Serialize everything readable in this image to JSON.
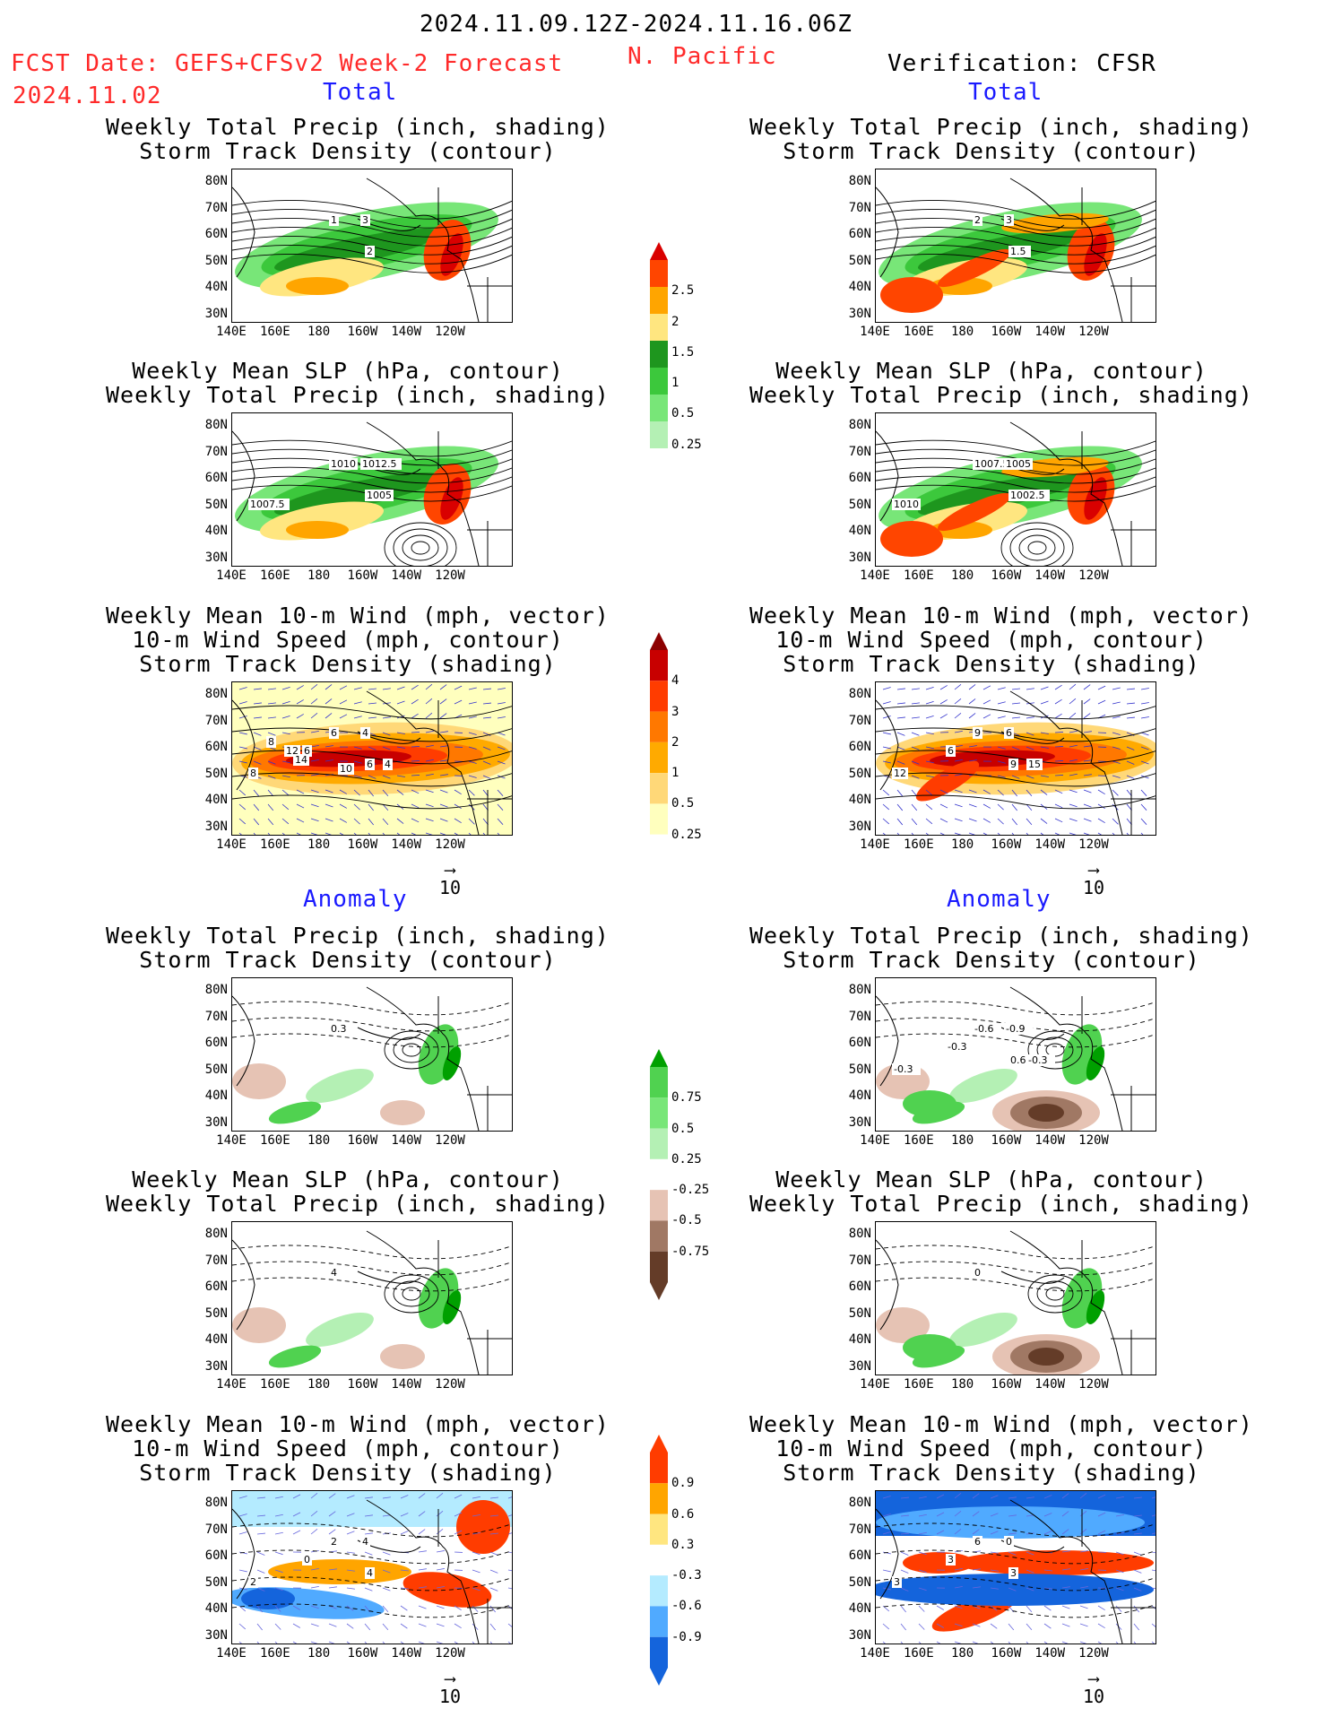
{
  "header": {
    "period": "2024.11.09.12Z-2024.11.16.06Z",
    "fcst_label": "FCST Date: GEFS+CFSv2 Week-2 Forecast",
    "fcst_date": "2024.11.02",
    "region": "N. Pacific",
    "verification": "Verification: CFSR"
  },
  "sections": {
    "total_left": "Total",
    "total_right": "Total",
    "anom_left": "Anomaly",
    "anom_right": "Anomaly"
  },
  "panel_titles": {
    "precip_storm": "Weekly Total Precip (inch, shading)\nStorm Track Density (contour)",
    "slp_precip": "Weekly Mean SLP (hPa, contour)\nWeekly Total Precip (inch, shading)",
    "wind_storm": "Weekly Mean 10-m Wind (mph, vector)\n10-m Wind Speed (mph, contour)\nStorm Track Density (shading)"
  },
  "axes": {
    "lat_labels": [
      "80N",
      "70N",
      "60N",
      "50N",
      "40N",
      "30N"
    ],
    "lon_labels": [
      "140E",
      "160E",
      "180",
      "160W",
      "140W",
      "120W"
    ]
  },
  "vector_ref": "10",
  "colorbars": {
    "precip_total": [
      "2.5",
      "2",
      "1.5",
      "1",
      "0.5",
      "0.25"
    ],
    "storm_total": [
      "4",
      "3",
      "2",
      "1",
      "0.5",
      "0.25"
    ],
    "precip_anom": [
      "0.75",
      "0.5",
      "0.25",
      "-0.25",
      "-0.5",
      "-0.75"
    ],
    "storm_anom": [
      "0.9",
      "0.6",
      "0.3",
      "-0.3",
      "-0.6",
      "-0.9"
    ]
  },
  "contour_labels": {
    "fc_precip_total": [
      "1",
      "3",
      "2"
    ],
    "cfsr_precip_total": [
      "2",
      "3",
      "1.5"
    ],
    "fc_slp_total": [
      "1010",
      "1012.5",
      "1005",
      "1007.5"
    ],
    "cfsr_slp_total": [
      "1007.5",
      "1005",
      "1002.5",
      "1010"
    ],
    "fc_wind_total": [
      "6",
      "4",
      "6",
      "8",
      "6",
      "4",
      "8",
      "12",
      "14",
      "10"
    ],
    "cfsr_wind_total": [
      "9",
      "6",
      "9",
      "12",
      "6",
      "15"
    ],
    "fc_precip_anom": [
      "0.3"
    ],
    "cfsr_precip_anom": [
      "-0.6",
      "-0.9",
      "0.6",
      "-0.3",
      "-0.3",
      "-0.3"
    ],
    "fc_slp_anom": [
      "4"
    ],
    "cfsr_slp_anom": [
      "0"
    ],
    "fc_wind_anom": [
      "2",
      "4",
      "4",
      "2",
      "0"
    ],
    "cfsr_wind_anom": [
      "6",
      "0",
      "3",
      "3",
      "3"
    ]
  },
  "colors": {
    "precip": [
      "#b4f0b4",
      "#78e678",
      "#3cc83c",
      "#1e961e",
      "#ffe680",
      "#ffa500",
      "#ff4500",
      "#d90000"
    ],
    "storm": [
      "#ffffbe",
      "#ffd878",
      "#ffaa00",
      "#ff7800",
      "#ff3c00",
      "#c80000",
      "#8c0000"
    ],
    "anom_wet": [
      "#b4f0b4",
      "#50d250",
      "#00a000"
    ],
    "anom_dry": [
      "#e6c3b4",
      "#a07864",
      "#643c28"
    ],
    "storm_anom_pos": [
      "#ffe680",
      "#ffa500",
      "#ff3c00"
    ],
    "storm_anom_neg": [
      "#b4ebff",
      "#50aaff",
      "#1464dc"
    ]
  }
}
